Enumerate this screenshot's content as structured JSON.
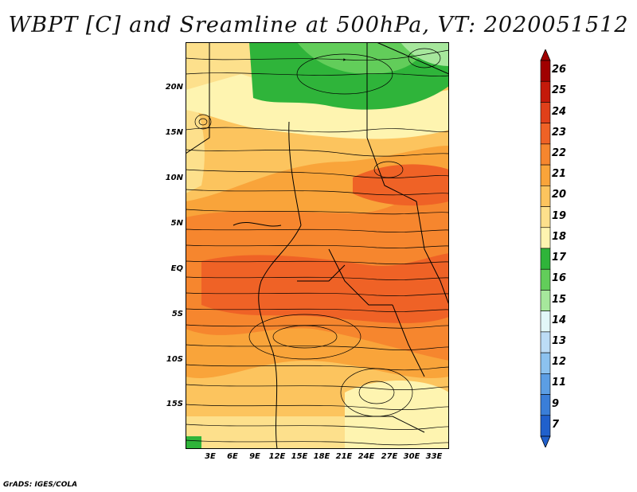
{
  "title": "WBPT [C] and Sreamline at 500hPa, VT: 2020051512",
  "credit": "GrADS: IGES/COLA",
  "map": {
    "variable": "Wet-bulb potential temperature",
    "units": "C",
    "level": "500hPa",
    "lon_range": [
      0,
      35
    ],
    "lat_range": [
      -20,
      24
    ],
    "y_axis_labels": [
      {
        "lat": 20,
        "text": "20N"
      },
      {
        "lat": 15,
        "text": "15N"
      },
      {
        "lat": 10,
        "text": "10N"
      },
      {
        "lat": 5,
        "text": "5N"
      },
      {
        "lat": 0,
        "text": "EQ"
      },
      {
        "lat": -5,
        "text": "5S"
      },
      {
        "lat": -10,
        "text": "10S"
      },
      {
        "lat": -15,
        "text": "15S"
      }
    ],
    "x_axis_labels": [
      {
        "lon": 3,
        "text": "3E"
      },
      {
        "lon": 6,
        "text": "6E"
      },
      {
        "lon": 9,
        "text": "9E"
      },
      {
        "lon": 12,
        "text": "12E"
      },
      {
        "lon": 15,
        "text": "15E"
      },
      {
        "lon": 18,
        "text": "18E"
      },
      {
        "lon": 21,
        "text": "21E"
      },
      {
        "lon": 24,
        "text": "24E"
      },
      {
        "lon": 27,
        "text": "27E"
      },
      {
        "lon": 30,
        "text": "30E"
      },
      {
        "lon": 33,
        "text": "33E"
      }
    ]
  },
  "colorbar": {
    "levels": [
      "26",
      "25",
      "24",
      "23",
      "22",
      "21",
      "20",
      "19",
      "18",
      "17",
      "16",
      "15",
      "14",
      "13",
      "12",
      "11",
      "9",
      "7"
    ],
    "colors": [
      "#a00000",
      "#c41a0a",
      "#e0401a",
      "#ef6226",
      "#f6862e",
      "#f9a43a",
      "#fcc45e",
      "#fde08c",
      "#fef4b0",
      "#2fb43a",
      "#62cd5a",
      "#a6e79c",
      "#e2f7f8",
      "#bcdcf6",
      "#8cc2ef",
      "#5c9ee4",
      "#3a7ed8",
      "#2060cc"
    ]
  }
}
